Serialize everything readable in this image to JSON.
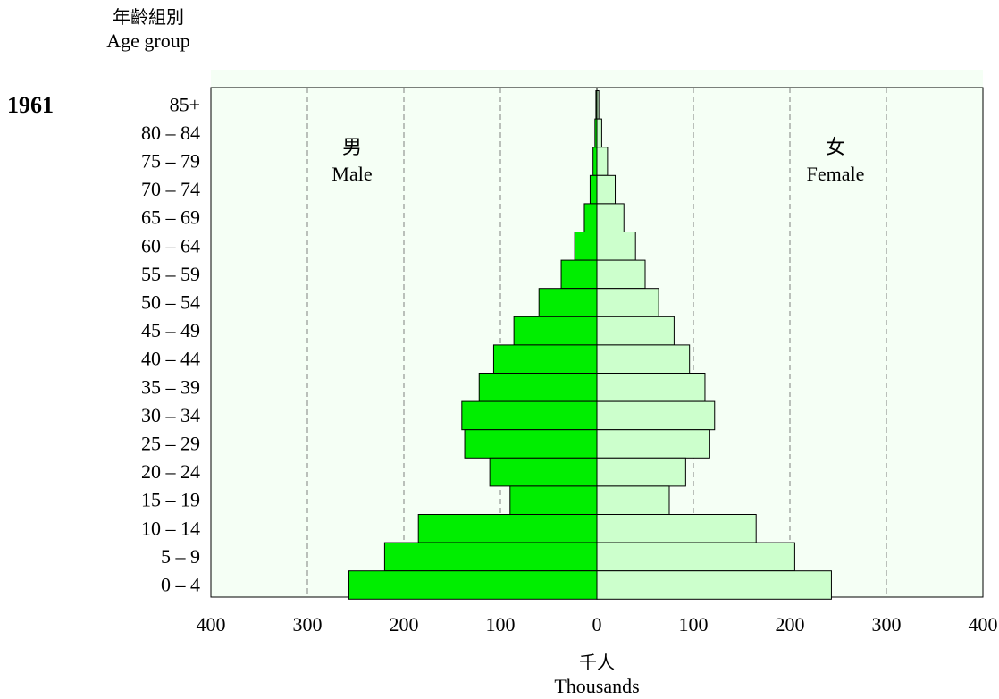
{
  "chart_data": {
    "type": "bar",
    "orientation": "horizontal",
    "layout": "population-pyramid",
    "year_label": "1961",
    "ylabel_zh": "年齡組別",
    "ylabel_en": "Age group",
    "xlabel_zh": "千人",
    "xlabel_en": "Thousands",
    "categories": [
      "85+",
      "80 – 84",
      "75 – 79",
      "70 – 74",
      "65 – 69",
      "60 – 64",
      "55 – 59",
      "50 – 54",
      "45 – 49",
      "40 – 44",
      "35 – 39",
      "30 – 34",
      "25 – 29",
      "20 – 24",
      "15 – 19",
      "10 – 14",
      "5 – 9",
      "0 – 4"
    ],
    "series": [
      {
        "name_zh": "男",
        "name_en": "Male",
        "color": "#00ee00",
        "values": [
          1,
          2,
          4,
          7,
          13,
          23,
          37,
          60,
          86,
          107,
          122,
          140,
          137,
          111,
          90,
          185,
          220,
          257
        ]
      },
      {
        "name_zh": "女",
        "name_en": "Female",
        "color": "#ccffcc",
        "values": [
          2,
          5,
          11,
          19,
          28,
          40,
          50,
          64,
          80,
          96,
          112,
          122,
          117,
          92,
          75,
          165,
          205,
          243
        ]
      }
    ],
    "xlim": [
      -400,
      400
    ],
    "xticks": [
      -400,
      -300,
      -200,
      -100,
      0,
      100,
      200,
      300,
      400
    ],
    "xtick_labels": [
      "400",
      "300",
      "200",
      "100",
      "0",
      "100",
      "200",
      "300",
      "400"
    ],
    "grid": "vertical dashed",
    "plot_background": "#f5fff5"
  }
}
